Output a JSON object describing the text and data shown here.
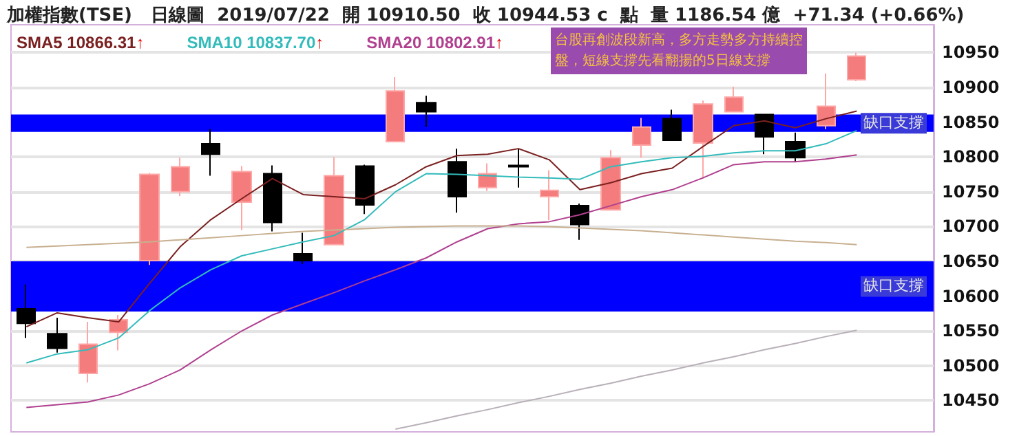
{
  "chart_data": {
    "type": "candlestick",
    "title": "加權指數(TSE)   日線圖  2019/07/22  開 10910.50  收 10944.53 c  點  量 1186.54 億  +71.34 (+0.66%)",
    "annotations": [
      "台股再創波段新高，多方走勢多方持續控盤，短線支撐先看翻揚的5日線支撐"
    ],
    "categories": [
      null,
      null,
      null,
      null,
      null,
      null,
      null,
      null,
      null,
      null,
      null,
      null,
      null,
      null,
      null,
      null,
      null,
      null,
      null,
      null,
      null,
      null,
      null,
      null,
      null,
      null,
      null,
      null
    ],
    "series": [
      {
        "ohlc": [
          [
            10582,
            10617,
            10540,
            10561
          ],
          [
            10546,
            10569,
            10519,
            10525
          ],
          [
            10489,
            10563,
            10476,
            10531
          ],
          [
            10548,
            10573,
            10522,
            10566
          ],
          [
            10651,
            10777,
            10645,
            10775
          ],
          [
            10750,
            10799,
            10744,
            10786
          ],
          [
            10819,
            10840,
            10773,
            10804
          ],
          [
            10735,
            10787,
            10695,
            10779
          ],
          [
            10776,
            10788,
            10693,
            10706
          ],
          [
            10661,
            10691,
            10646,
            10651
          ],
          [
            10674,
            10800,
            10674,
            10773
          ],
          [
            10787,
            10789,
            10718,
            10731
          ],
          [
            10822,
            10915,
            10822,
            10895
          ],
          [
            10878,
            10888,
            10843,
            10865
          ],
          [
            10793,
            10812,
            10720,
            10743
          ],
          [
            10756,
            10791,
            10751,
            10776
          ],
          [
            10788,
            10812,
            10756,
            10786
          ],
          [
            10743,
            10781,
            10709,
            10752
          ],
          [
            10730,
            10733,
            10681,
            10703
          ],
          [
            10724,
            10810,
            10724,
            10799
          ],
          [
            10817,
            10856,
            10799,
            10843
          ],
          [
            10855,
            10868,
            10824,
            10824
          ],
          [
            10820,
            10881,
            10769,
            10876
          ],
          [
            10865,
            10901,
            10865,
            10886
          ],
          [
            10861,
            10861,
            10804,
            10829
          ],
          [
            10822,
            10835,
            10793,
            10799
          ],
          [
            10845,
            10920,
            10840,
            10873
          ],
          [
            10911,
            10950,
            10909,
            10945
          ]
        ],
        "colors": [
          "#000000",
          "#000000",
          "#f47c7c",
          "#f47c7c",
          "#f47c7c",
          "#f47c7c",
          "#000000",
          "#f47c7c",
          "#000000",
          "#000000",
          "#f47c7c",
          "#000000",
          "#f47c7c",
          "#000000",
          "#000000",
          "#f47c7c",
          "#000000",
          "#f47c7c",
          "#000000",
          "#f47c7c",
          "#f47c7c",
          "#000000",
          "#f47c7c",
          "#f47c7c",
          "#000000",
          "#000000",
          "#f47c7c",
          "#f47c7c"
        ]
      },
      {
        "type": "line",
        "name": "SMA5 10866.31↑",
        "color": "#7a2020",
        "values": [
          10556,
          10576,
          10569,
          10563,
          10618,
          10671,
          10710,
          10740,
          10769,
          10746,
          10743,
          10740,
          10760,
          10786,
          10802,
          10804,
          10812,
          10796,
          10753,
          10763,
          10776,
          10784,
          10815,
          10845,
          10852,
          10842,
          10855,
          10866
        ]
      },
      {
        "type": "line",
        "name": "SMA10 10837.70↑",
        "color": "#33bbbb",
        "values": [
          10504,
          10517,
          10523,
          10540,
          10579,
          10612,
          10638,
          10658,
          10668,
          10678,
          10687,
          10710,
          10750,
          10776,
          10775,
          10773,
          10771,
          10770,
          10768,
          10786,
          10793,
          10799,
          10801,
          10806,
          10809,
          10809,
          10819,
          10838
        ]
      },
      {
        "type": "line",
        "name": "SMA20 10802.91↑",
        "color": "#b0408f",
        "values": [
          10440,
          10444,
          10448,
          10458,
          10474,
          10494,
          10523,
          10550,
          10573,
          10589,
          10605,
          10622,
          10638,
          10655,
          10678,
          10697,
          10704,
          10707,
          10717,
          10730,
          10743,
          10753,
          10770,
          10789,
          10793,
          10793,
          10797,
          10803
        ]
      },
      {
        "type": "line",
        "color": "#c8b090",
        "values": [
          10670,
          10672,
          10674,
          10676,
          10678,
          10681,
          10684,
          10687,
          10690,
          10693,
          10695,
          10697,
          10699,
          10700,
          10701,
          10701,
          10701,
          10700,
          10698,
          10696,
          10694,
          10691,
          10688,
          10685,
          10682,
          10679,
          10677,
          10674
        ]
      },
      {
        "type": "line",
        "color": "#b8b0b8",
        "values": [
          null,
          null,
          null,
          null,
          null,
          null,
          null,
          null,
          null,
          null,
          null,
          null,
          10409,
          10418,
          10428,
          10437,
          10447,
          10456,
          10466,
          10475,
          10485,
          10494,
          10504,
          10513,
          10523,
          10532,
          10542,
          10551
        ]
      }
    ],
    "bands": [
      {
        "axis": "y",
        "from": 10578,
        "to": 10650,
        "label": "缺口支撐",
        "color": "#0000ff"
      },
      {
        "axis": "y",
        "from": 10836,
        "to": 10861,
        "label": "缺口支撐",
        "color": "#0000ff"
      }
    ],
    "ylim": [
      10405,
      10990
    ],
    "yticks": [
      10450,
      10500,
      10550,
      10600,
      10650,
      10700,
      10750,
      10800,
      10850,
      10900,
      10950
    ],
    "grid": "y",
    "legend": "top left",
    "tick_labels": "y"
  }
}
